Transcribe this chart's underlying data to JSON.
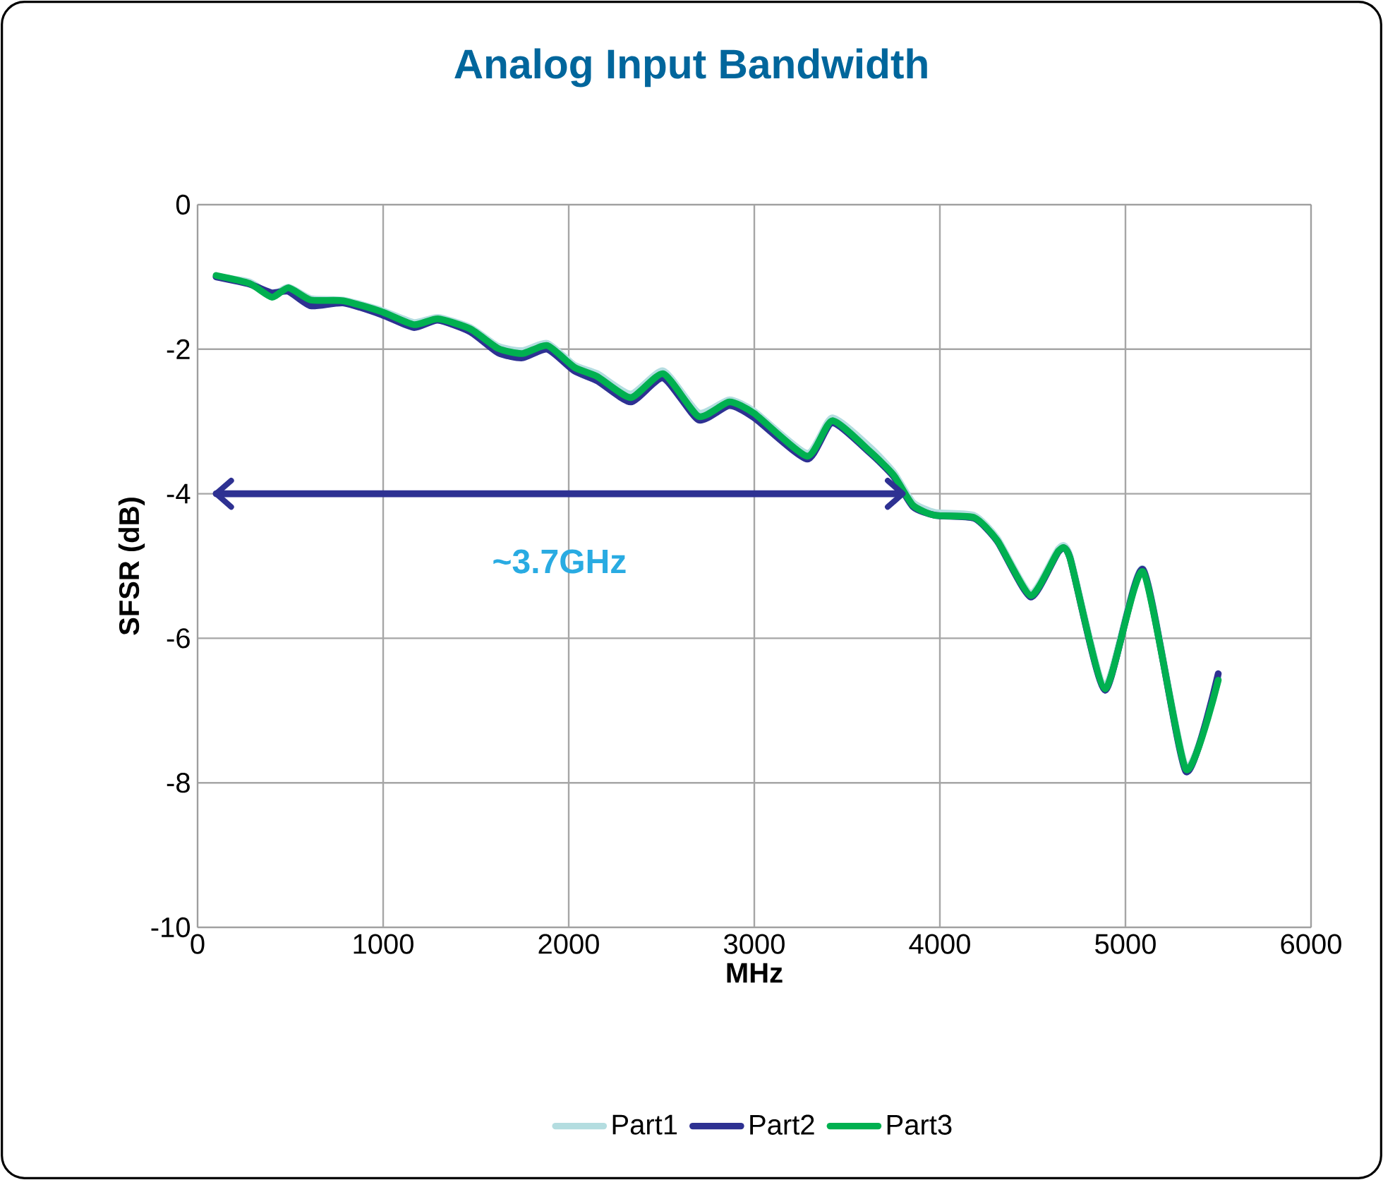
{
  "chart_data": {
    "type": "line",
    "title": "Analog Input Bandwidth",
    "xlabel": "MHz",
    "ylabel": "SFSR (dB)",
    "x": [
      100,
      280,
      400,
      490,
      610,
      785,
      990,
      1165,
      1295,
      1470,
      1620,
      1750,
      1885,
      2030,
      2155,
      2335,
      2510,
      2700,
      2865,
      3000,
      3285,
      3420,
      3625,
      3750,
      3855,
      3975,
      4185,
      4310,
      4490,
      4640,
      4700,
      4890,
      5095,
      5325,
      5500
    ],
    "series": [
      {
        "name": "Part1",
        "color": "#b4dde0",
        "values": [
          -1.0,
          -1.07,
          -1.25,
          -1.14,
          -1.3,
          -1.32,
          -1.46,
          -1.63,
          -1.56,
          -1.7,
          -1.96,
          -2.02,
          -1.92,
          -2.22,
          -2.34,
          -2.62,
          -2.3,
          -2.88,
          -2.7,
          -2.86,
          -3.44,
          -2.95,
          -3.36,
          -3.7,
          -4.12,
          -4.26,
          -4.3,
          -4.62,
          -5.38,
          -4.76,
          -4.85,
          -6.66,
          -5.04,
          -7.78,
          -6.56
        ]
      },
      {
        "name": "Part2",
        "color": "#2e3192",
        "values": [
          -1.0,
          -1.1,
          -1.22,
          -1.2,
          -1.4,
          -1.36,
          -1.52,
          -1.7,
          -1.6,
          -1.76,
          -2.05,
          -2.12,
          -2.0,
          -2.3,
          -2.44,
          -2.73,
          -2.4,
          -2.98,
          -2.78,
          -2.95,
          -3.52,
          -3.02,
          -3.44,
          -3.76,
          -4.18,
          -4.3,
          -4.34,
          -4.66,
          -5.43,
          -4.8,
          -4.88,
          -6.72,
          -5.05,
          -7.84,
          -6.49
        ]
      },
      {
        "type": "line",
        "color": "#2e3192",
        "x": [
          100,
          3800
        ],
        "values": [
          -4,
          -4
        ]
      },
      {
        "name": "Part3",
        "color": "#00b050",
        "values": [
          -0.98,
          -1.09,
          -1.28,
          -1.15,
          -1.32,
          -1.33,
          -1.48,
          -1.66,
          -1.58,
          -1.72,
          -1.99,
          -2.06,
          -1.95,
          -2.25,
          -2.38,
          -2.67,
          -2.34,
          -2.93,
          -2.73,
          -2.89,
          -3.48,
          -2.99,
          -3.42,
          -3.74,
          -4.16,
          -4.3,
          -4.33,
          -4.65,
          -5.41,
          -4.79,
          -4.88,
          -6.7,
          -5.08,
          -7.81,
          -6.58
        ]
      }
    ],
    "xlim": [
      0,
      6000
    ],
    "xticks": [
      0,
      1000,
      2000,
      3000,
      4000,
      5000,
      6000
    ],
    "ylim": [
      -10,
      0
    ],
    "yticks": [
      -10,
      -8,
      -6,
      -4,
      -2,
      0
    ],
    "grid": true,
    "legend": "bottom",
    "marker": "none",
    "line_style": "solid",
    "annotations": [
      "~3.7GHz"
    ]
  }
}
